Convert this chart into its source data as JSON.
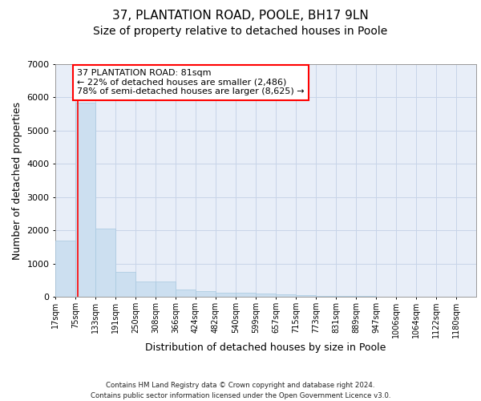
{
  "title": "37, PLANTATION ROAD, POOLE, BH17 9LN",
  "subtitle": "Size of property relative to detached houses in Poole",
  "xlabel": "Distribution of detached houses by size in Poole",
  "ylabel": "Number of detached properties",
  "annotation_line1": "37 PLANTATION ROAD: 81sqm",
  "annotation_line2": "← 22% of detached houses are smaller (2,486)",
  "annotation_line3": "78% of semi-detached houses are larger (8,625) →",
  "footer_line1": "Contains HM Land Registry data © Crown copyright and database right 2024.",
  "footer_line2": "Contains public sector information licensed under the Open Government Licence v3.0.",
  "property_size": 81,
  "bar_left_edges": [
    17,
    75,
    133,
    191,
    250,
    308,
    366,
    424,
    482,
    540,
    599,
    657,
    715,
    773,
    831,
    889,
    947,
    1006,
    1064,
    1122
  ],
  "bar_widths": [
    58,
    58,
    58,
    59,
    58,
    58,
    58,
    58,
    58,
    59,
    58,
    58,
    58,
    58,
    58,
    58,
    59,
    58,
    58,
    58
  ],
  "bar_heights": [
    1700,
    5850,
    2050,
    750,
    460,
    460,
    220,
    175,
    130,
    110,
    100,
    80,
    50,
    30,
    20,
    15,
    10,
    8,
    5,
    3
  ],
  "bar_color": "#ccdff0",
  "bar_edge_color": "#a8c8e0",
  "tick_labels": [
    "17sqm",
    "75sqm",
    "133sqm",
    "191sqm",
    "250sqm",
    "308sqm",
    "366sqm",
    "424sqm",
    "482sqm",
    "540sqm",
    "599sqm",
    "657sqm",
    "715sqm",
    "773sqm",
    "831sqm",
    "889sqm",
    "947sqm",
    "1006sqm",
    "1064sqm",
    "1122sqm",
    "1180sqm"
  ],
  "ylim": [
    0,
    7000
  ],
  "yticks": [
    0,
    1000,
    2000,
    3000,
    4000,
    5000,
    6000,
    7000
  ],
  "grid_color": "#c8d4e8",
  "plot_bg_color": "#e8eef8",
  "red_line_x": 81,
  "title_fontsize": 11,
  "subtitle_fontsize": 10,
  "title_fontweight": "normal"
}
